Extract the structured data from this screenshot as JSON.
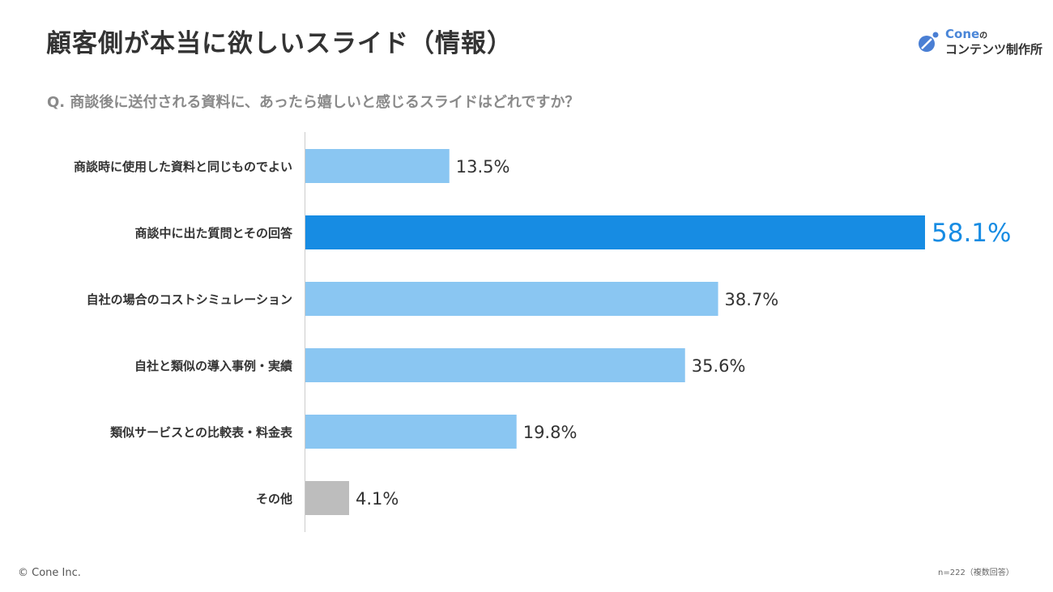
{
  "header": {
    "title": "顧客側が本当に欲しいスライド（情報）",
    "question": "Q. 商談後に送付される資料に、あったら嬉しいと感じるスライドはどれですか？"
  },
  "logo": {
    "brand": "Cone",
    "particle": "の",
    "subtitle": "コンテンツ制作所"
  },
  "footer": {
    "copyright": "© Cone Inc.",
    "note": "n=222（複数回答）"
  },
  "chart_data": {
    "type": "bar",
    "orientation": "horizontal",
    "title": "顧客側が本当に欲しいスライド（情報）",
    "categories": [
      "商談時に使用した資料と同じものでよい",
      "商談中に出た質問とその回答",
      "自社の場合のコストシミュレーション",
      "自社と類似の導入事例・実績",
      "類似サービスとの比較表・料金表",
      "その他"
    ],
    "values": [
      13.5,
      58.1,
      38.7,
      35.6,
      19.8,
      4.1
    ],
    "labels": [
      "13.5%",
      "58.1%",
      "38.7%",
      "35.6%",
      "19.8%",
      "4.1%"
    ],
    "colors": [
      "#8ac6f2",
      "#178ce3",
      "#8ac6f2",
      "#8ac6f2",
      "#8ac6f2",
      "#bdbdbd"
    ],
    "highlight_label_color": "#178ce3",
    "xlim": [
      0,
      60
    ],
    "grid": false
  }
}
